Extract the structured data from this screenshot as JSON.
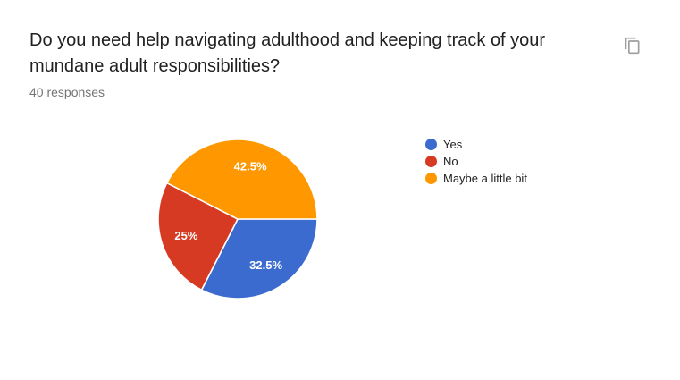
{
  "page": {
    "background": "#ffffff"
  },
  "header": {
    "title": "Do you need help navigating adulthood and keeping track of your mundane adult responsibilities?",
    "response_count": "40 responses"
  },
  "colors": {
    "title_text": "#212121",
    "secondary_text": "#757575",
    "legend_text": "#222222",
    "icon": "#9e9e9e",
    "slice_label_text": "#ffffff"
  },
  "icons": {
    "copy": "copy-icon"
  },
  "chart_data": {
    "type": "pie",
    "title": "Do you need help navigating adulthood and keeping track of your mundane adult responsibilities?",
    "subtitle": "40 responses",
    "categories": [
      "Yes",
      "No",
      "Maybe a little bit"
    ],
    "values": [
      32.5,
      25,
      42.5
    ],
    "slices": [
      {
        "label": "Yes",
        "percent": 32.5,
        "display": "32.5%",
        "color": "#3b6bce"
      },
      {
        "label": "No",
        "percent": 25,
        "display": "25%",
        "color": "#d73a22"
      },
      {
        "label": "Maybe a little bit",
        "percent": 42.5,
        "display": "42.5%",
        "color": "#ff9800"
      }
    ],
    "start_angle_deg": 0,
    "direction": "clockwise",
    "legend_position": "right",
    "labels_on_slices": "percent",
    "grid": false
  }
}
